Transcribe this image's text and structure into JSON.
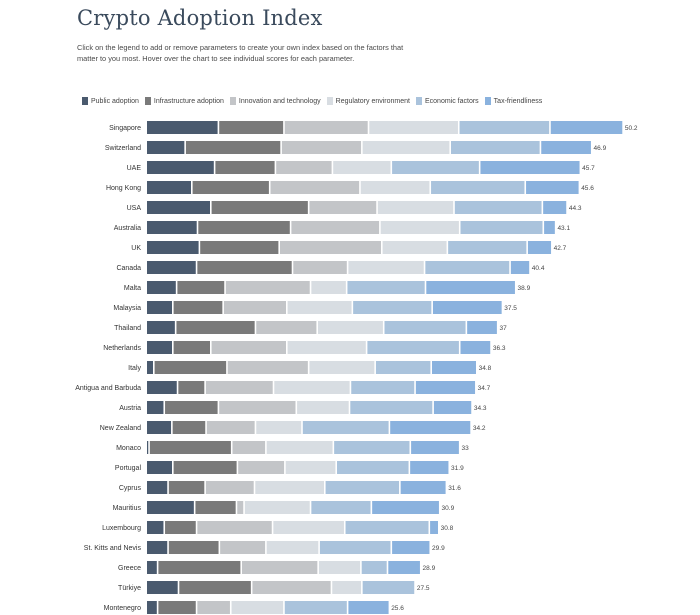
{
  "title": "Crypto Adoption Index",
  "subtitle": "Click on the legend to add or remove parameters to create your own index based on the factors that matter to you most. Hover over the chart to see individual scores for each parameter.",
  "chart_data": {
    "type": "bar",
    "orientation": "horizontal",
    "stacked": true,
    "legend_position": "top-left",
    "categories": [
      "Singapore",
      "Switzerland",
      "UAE",
      "Hong Kong",
      "USA",
      "Australia",
      "UK",
      "Canada",
      "Malta",
      "Malaysia",
      "Thailand",
      "Netherlands",
      "Italy",
      "Antigua and Barbuda",
      "Austria",
      "New Zealand",
      "Monaco",
      "Portugal",
      "Cyprus",
      "Mauritius",
      "Luxembourg",
      "St. Kitts and Nevis",
      "Greece",
      "Türkiye",
      "Montenegro"
    ],
    "totals": [
      50.2,
      46.9,
      45.7,
      45.6,
      44.3,
      43.1,
      42.7,
      40.4,
      38.9,
      37.5,
      37,
      36.3,
      34.8,
      34.7,
      34.3,
      34.2,
      33,
      31.9,
      31.6,
      30.9,
      30.8,
      29.9,
      28.9,
      27.5,
      25.6
    ],
    "series": [
      {
        "name": "Public adoption",
        "color": "#4a5a6e",
        "values": [
          7.6,
          4.1,
          7.2,
          4.8,
          6.8,
          5.4,
          5.6,
          5.3,
          3.2,
          2.8,
          3.1,
          2.8,
          0.8,
          3.3,
          1.9,
          2.7,
          0.3,
          2.8,
          2.3,
          5.1,
          1.9,
          2.3,
          1.2,
          3.4,
          1.2
        ]
      },
      {
        "name": "Infrastructure adoption",
        "color": "#7a7a7a",
        "values": [
          6.9,
          10.1,
          6.4,
          8.2,
          10.3,
          9.8,
          8.4,
          10.1,
          5.1,
          5.3,
          8.4,
          4.0,
          7.7,
          2.9,
          5.7,
          3.6,
          8.7,
          6.8,
          3.9,
          4.4,
          3.4,
          5.4,
          8.8,
          7.7,
          4.1
        ]
      },
      {
        "name": "Innovation and technology",
        "color": "#c3c5c8",
        "values": [
          8.9,
          8.5,
          6.0,
          9.5,
          7.2,
          9.4,
          10.8,
          5.8,
          9.0,
          6.7,
          6.5,
          8.0,
          8.6,
          7.2,
          8.2,
          5.2,
          3.6,
          5.0,
          5.2,
          0.8,
          8.0,
          4.9,
          8.1,
          8.4,
          3.6
        ]
      },
      {
        "name": "Regulatory environment",
        "color": "#d8dde2",
        "values": [
          9.5,
          9.3,
          6.2,
          7.4,
          8.1,
          8.4,
          6.9,
          8.1,
          3.8,
          6.9,
          7.0,
          8.4,
          7.0,
          8.1,
          5.6,
          4.9,
          7.1,
          5.4,
          7.4,
          7.0,
          7.6,
          5.6,
          4.5,
          3.2,
          5.6
        ]
      },
      {
        "name": "Economic factors",
        "color": "#aac3dc",
        "values": [
          9.6,
          9.5,
          9.3,
          10.0,
          9.3,
          8.8,
          8.4,
          9.0,
          8.3,
          8.4,
          8.7,
          9.8,
          5.9,
          6.8,
          8.8,
          9.2,
          8.1,
          7.7,
          7.9,
          6.4,
          8.9,
          7.6,
          2.8,
          5.6,
          6.7
        ]
      },
      {
        "name": "Tax-friendliness",
        "color": "#8ab2de",
        "values": [
          7.7,
          5.4,
          10.6,
          5.7,
          2.6,
          1.3,
          2.6,
          2.1,
          9.5,
          7.4,
          3.3,
          3.3,
          4.8,
          6.4,
          4.1,
          8.6,
          5.2,
          4.2,
          4.9,
          7.2,
          1.0,
          4.1,
          3.5,
          -0.8,
          4.4
        ]
      }
    ]
  }
}
